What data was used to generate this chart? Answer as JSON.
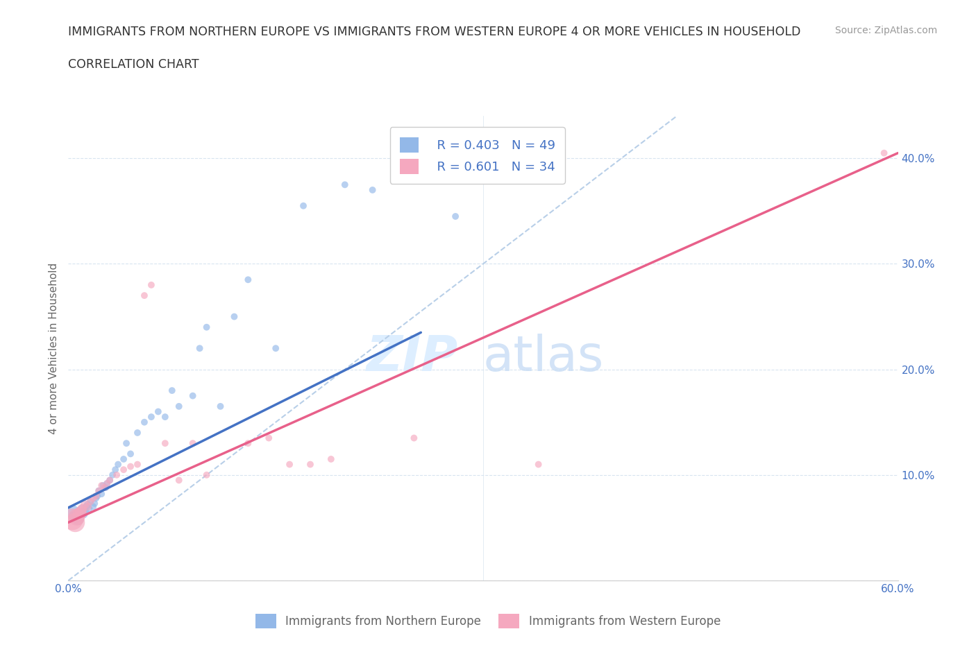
{
  "title_line1": "IMMIGRANTS FROM NORTHERN EUROPE VS IMMIGRANTS FROM WESTERN EUROPE 4 OR MORE VEHICLES IN HOUSEHOLD",
  "title_line2": "CORRELATION CHART",
  "source_text": "Source: ZipAtlas.com",
  "ylabel": "4 or more Vehicles in Household",
  "xlim": [
    0.0,
    0.6
  ],
  "ylim": [
    0.0,
    0.44
  ],
  "xticks": [
    0.0,
    0.1,
    0.2,
    0.3,
    0.4,
    0.5,
    0.6
  ],
  "xticklabels": [
    "0.0%",
    "",
    "",
    "",
    "",
    "",
    "60.0%"
  ],
  "yticks": [
    0.0,
    0.1,
    0.2,
    0.3,
    0.4
  ],
  "yticklabels": [
    "",
    "10.0%",
    "20.0%",
    "30.0%",
    "40.0%"
  ],
  "R_blue": 0.403,
  "N_blue": 49,
  "R_pink": 0.601,
  "N_pink": 34,
  "blue_color": "#93b8e8",
  "pink_color": "#f5a8bf",
  "blue_line_color": "#4472c4",
  "pink_line_color": "#e8608a",
  "ref_line_color": "#b8cfe8",
  "grid_color": "#d8e4f0",
  "blue_line_x": [
    0.0,
    0.255
  ],
  "blue_line_y": [
    0.069,
    0.235
  ],
  "pink_line_x": [
    0.0,
    0.6
  ],
  "pink_line_y": [
    0.055,
    0.405
  ],
  "ref_line_x": [
    0.0,
    0.44
  ],
  "ref_line_y": [
    0.0,
    0.44
  ],
  "blue_scatter_x": [
    0.003,
    0.005,
    0.007,
    0.008,
    0.009,
    0.01,
    0.011,
    0.012,
    0.013,
    0.014,
    0.015,
    0.016,
    0.018,
    0.019,
    0.02,
    0.021,
    0.022,
    0.024,
    0.025,
    0.027,
    0.028,
    0.03,
    0.032,
    0.034,
    0.036,
    0.04,
    0.042,
    0.045,
    0.05,
    0.055,
    0.06,
    0.065,
    0.07,
    0.075,
    0.08,
    0.09,
    0.095,
    0.1,
    0.11,
    0.12,
    0.13,
    0.15,
    0.17,
    0.2,
    0.22,
    0.245,
    0.25,
    0.28,
    0.285
  ],
  "blue_scatter_y": [
    0.065,
    0.06,
    0.058,
    0.062,
    0.064,
    0.068,
    0.063,
    0.066,
    0.07,
    0.072,
    0.068,
    0.075,
    0.07,
    0.073,
    0.078,
    0.08,
    0.085,
    0.082,
    0.09,
    0.088,
    0.092,
    0.095,
    0.1,
    0.105,
    0.11,
    0.115,
    0.13,
    0.12,
    0.14,
    0.15,
    0.155,
    0.16,
    0.155,
    0.18,
    0.165,
    0.175,
    0.22,
    0.24,
    0.165,
    0.25,
    0.285,
    0.22,
    0.355,
    0.375,
    0.37,
    0.38,
    0.39,
    0.345,
    0.39
  ],
  "blue_scatter_size": [
    200,
    180,
    150,
    120,
    100,
    80,
    80,
    70,
    60,
    60,
    55,
    50,
    50,
    50,
    50,
    50,
    50,
    50,
    50,
    50,
    50,
    50,
    50,
    50,
    50,
    50,
    50,
    50,
    50,
    50,
    50,
    50,
    50,
    50,
    50,
    50,
    50,
    50,
    50,
    50,
    50,
    50,
    50,
    50,
    50,
    50,
    50,
    50,
    50
  ],
  "pink_scatter_x": [
    0.003,
    0.005,
    0.006,
    0.008,
    0.009,
    0.01,
    0.012,
    0.014,
    0.016,
    0.018,
    0.02,
    0.022,
    0.024,
    0.026,
    0.028,
    0.03,
    0.035,
    0.04,
    0.045,
    0.05,
    0.055,
    0.06,
    0.07,
    0.08,
    0.09,
    0.1,
    0.13,
    0.145,
    0.16,
    0.175,
    0.19,
    0.25,
    0.34,
    0.59
  ],
  "pink_scatter_y": [
    0.058,
    0.055,
    0.06,
    0.063,
    0.065,
    0.068,
    0.072,
    0.07,
    0.075,
    0.078,
    0.08,
    0.085,
    0.09,
    0.088,
    0.092,
    0.095,
    0.1,
    0.105,
    0.108,
    0.11,
    0.27,
    0.28,
    0.13,
    0.095,
    0.13,
    0.1,
    0.13,
    0.135,
    0.11,
    0.11,
    0.115,
    0.135,
    0.11,
    0.405
  ],
  "pink_scatter_size": [
    500,
    400,
    300,
    200,
    150,
    100,
    80,
    70,
    60,
    55,
    55,
    50,
    50,
    50,
    50,
    50,
    50,
    50,
    50,
    50,
    50,
    50,
    50,
    50,
    50,
    50,
    50,
    50,
    50,
    50,
    50,
    50,
    50,
    50
  ]
}
